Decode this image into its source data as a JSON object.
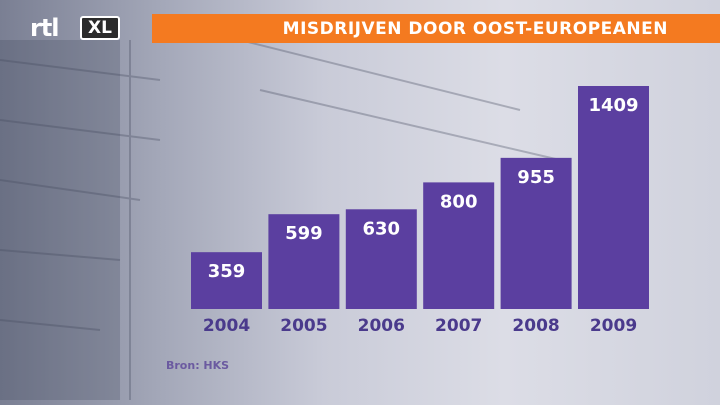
{
  "logo": {
    "brand": "rtl",
    "sub": "XL"
  },
  "title": "MISDRIJVEN DOOR OOST-EUROPEANEN",
  "source": "Bron: HKS",
  "colors": {
    "bar": "#5b3fa0",
    "title_bar": "#f47a20",
    "year_label": "#4a3a8c",
    "value_label": "#ffffff"
  },
  "chart_data": {
    "type": "bar",
    "title": "MISDRIJVEN DOOR OOST-EUROPEANEN",
    "categories": [
      "2004",
      "2005",
      "2006",
      "2007",
      "2008",
      "2009"
    ],
    "values": [
      359,
      599,
      630,
      800,
      955,
      1409
    ],
    "xlabel": "",
    "ylabel": "",
    "ylim": [
      0,
      1409
    ],
    "grid": false,
    "legend": "none"
  }
}
